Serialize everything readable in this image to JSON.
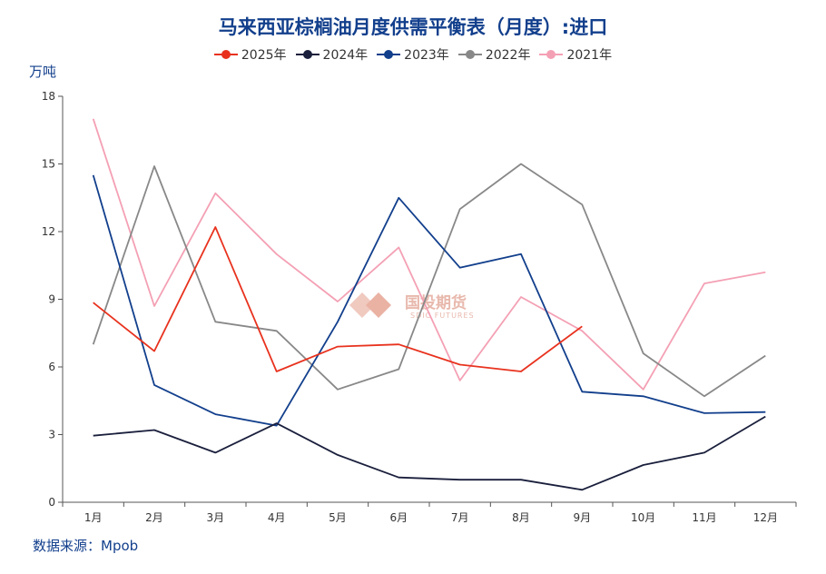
{
  "title": "马来西亚棕榈油月度供需平衡表（月度）:进口",
  "unit": "万吨",
  "source": "数据来源：Mpob",
  "watermark": {
    "main": "国投期货",
    "sub": "SDIC FUTURES"
  },
  "chart_data": {
    "type": "line",
    "categories": [
      "1月",
      "2月",
      "3月",
      "4月",
      "5月",
      "6月",
      "7月",
      "8月",
      "9月",
      "10月",
      "11月",
      "12月"
    ],
    "ylim": [
      0,
      18
    ],
    "yticks": [
      0,
      3,
      6,
      9,
      12,
      15,
      18
    ],
    "grid": false,
    "legend_position": "top",
    "series": [
      {
        "name": "2025年",
        "color": "#e8321e",
        "values": [
          8.85,
          6.7,
          12.2,
          5.8,
          6.9,
          7.0,
          6.1,
          5.8,
          7.8,
          null,
          null,
          null
        ]
      },
      {
        "name": "2024年",
        "color": "#1a1f3c",
        "values": [
          2.95,
          3.2,
          2.2,
          3.5,
          2.1,
          1.1,
          1.0,
          1.0,
          0.55,
          1.65,
          2.2,
          3.8
        ]
      },
      {
        "name": "2023年",
        "color": "#123f8c",
        "values": [
          14.5,
          5.2,
          3.9,
          3.4,
          8.0,
          13.5,
          10.4,
          11.0,
          4.9,
          4.7,
          3.95,
          4.0
        ]
      },
      {
        "name": "2022年",
        "color": "#888888",
        "values": [
          7.0,
          14.9,
          8.0,
          7.6,
          5.0,
          5.9,
          13.0,
          15.0,
          13.2,
          6.6,
          4.7,
          6.5
        ]
      },
      {
        "name": "2021年",
        "color": "#f4a0b4",
        "values": [
          17.0,
          8.7,
          13.7,
          11.0,
          8.9,
          11.3,
          5.4,
          9.1,
          7.6,
          5.0,
          9.7,
          10.2
        ]
      }
    ]
  }
}
